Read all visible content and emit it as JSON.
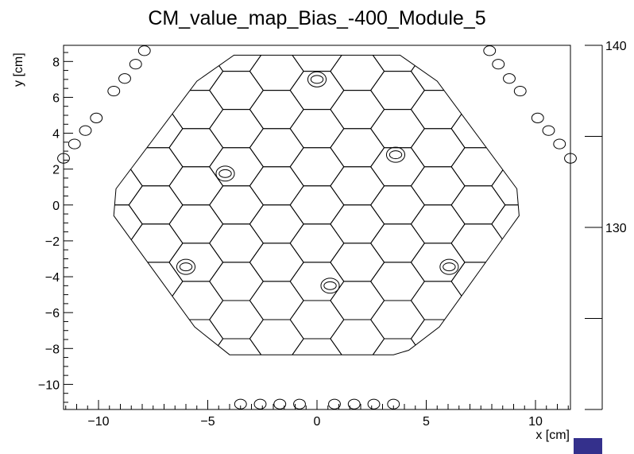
{
  "chart_data": {
    "type": "heatmap",
    "title": "CM_value_map_Bias_-400_Module_5",
    "xlabel": "x [cm]",
    "ylabel": "y [cm]",
    "xlim": [
      -11.6,
      11.6
    ],
    "ylim": [
      -11.4,
      8.9
    ],
    "x_ticks": [
      -10,
      -5,
      0,
      5,
      10
    ],
    "x_tick_labels": [
      "−10",
      "−5",
      "0",
      "5",
      "10"
    ],
    "y_ticks": [
      -10,
      -8,
      -6,
      -4,
      -2,
      0,
      2,
      4,
      6,
      8
    ],
    "y_tick_labels": [
      "−10",
      "−8",
      "−6",
      "−4",
      "−2",
      "0",
      "2",
      "4",
      "6",
      "8"
    ],
    "colorbar": {
      "range": [
        120,
        140
      ],
      "ticks": [
        130,
        140
      ],
      "tick_labels": [
        "130",
        "140"
      ],
      "palette_color": "#34308c"
    },
    "module_outline_cm": [
      [
        -3.8,
        8.35
      ],
      [
        3.8,
        8.35
      ],
      [
        5.5,
        6.9
      ],
      [
        9.15,
        0.9
      ],
      [
        9.25,
        -0.6
      ],
      [
        5.6,
        -6.8
      ],
      [
        4.2,
        -8.1
      ],
      [
        3.5,
        -8.35
      ],
      [
        -4.0,
        -8.35
      ],
      [
        -5.6,
        -6.8
      ],
      [
        -9.3,
        -0.6
      ],
      [
        -9.2,
        0.9
      ],
      [
        -5.5,
        6.9
      ]
    ],
    "hexagonal_cells": {
      "cell_size_cm": 1.23,
      "count_note": "hexagonal pad cells tiling the module outline"
    },
    "calibration_pads_cm": [
      [
        0.0,
        7.0
      ],
      [
        3.6,
        2.8
      ],
      [
        -4.2,
        1.75
      ],
      [
        -6.0,
        -3.45
      ],
      [
        0.6,
        -4.5
      ],
      [
        6.05,
        -3.45
      ]
    ],
    "edge_cells_cm": [
      [
        -11.6,
        2.6
      ],
      [
        -11.1,
        3.4
      ],
      [
        -10.6,
        4.15
      ],
      [
        -10.1,
        4.85
      ],
      [
        -9.3,
        6.35
      ],
      [
        -8.8,
        7.05
      ],
      [
        -8.3,
        7.85
      ],
      [
        -7.9,
        8.6
      ],
      [
        7.9,
        8.6
      ],
      [
        8.3,
        7.85
      ],
      [
        8.8,
        7.05
      ],
      [
        9.3,
        6.35
      ],
      [
        10.1,
        4.85
      ],
      [
        10.6,
        4.15
      ],
      [
        11.1,
        3.4
      ],
      [
        11.6,
        2.6
      ],
      [
        -3.5,
        -11.1
      ],
      [
        -2.6,
        -11.1
      ],
      [
        -1.7,
        -11.1
      ],
      [
        -0.8,
        -11.1
      ],
      [
        0.8,
        -11.1
      ],
      [
        1.7,
        -11.1
      ],
      [
        2.6,
        -11.1
      ],
      [
        3.5,
        -11.1
      ]
    ],
    "grid": false,
    "legend": "none"
  }
}
